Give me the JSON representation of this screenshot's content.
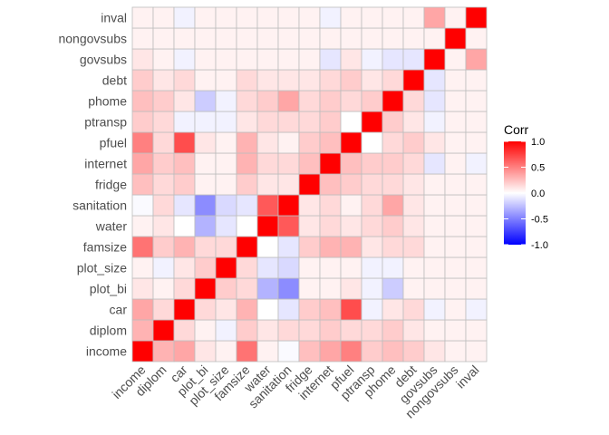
{
  "chart_data": {
    "type": "heatmap",
    "variables": [
      "income",
      "diplom",
      "car",
      "plot_bi",
      "plot_size",
      "famsize",
      "water",
      "sanitation",
      "fridge",
      "internet",
      "pfuel",
      "ptransp",
      "phome",
      "debt",
      "govsubs",
      "nongovsubs",
      "inval"
    ],
    "matrix": [
      [
        1.0,
        0.3,
        0.35,
        0.1,
        0.05,
        0.55,
        0.05,
        -0.02,
        0.25,
        0.35,
        0.5,
        0.2,
        0.25,
        0.2,
        0.1,
        0.05,
        0.05
      ],
      [
        0.3,
        1.0,
        0.15,
        0.05,
        -0.05,
        0.2,
        0.1,
        0.15,
        0.15,
        0.2,
        0.15,
        0.15,
        0.2,
        0.1,
        0.05,
        0.05,
        0.05
      ],
      [
        0.35,
        0.15,
        1.0,
        0.15,
        0.1,
        0.3,
        0.0,
        -0.1,
        0.2,
        0.25,
        0.7,
        -0.05,
        0.1,
        0.15,
        -0.05,
        0.05,
        -0.05
      ],
      [
        0.1,
        0.05,
        0.15,
        1.0,
        0.2,
        0.15,
        -0.3,
        -0.45,
        0.05,
        0.05,
        0.1,
        -0.05,
        -0.2,
        0.05,
        0.05,
        0.05,
        0.05
      ],
      [
        0.05,
        -0.05,
        0.1,
        0.2,
        1.0,
        0.15,
        -0.1,
        -0.15,
        0.05,
        0.05,
        0.05,
        -0.05,
        -0.05,
        0.05,
        0.05,
        0.05,
        0.05
      ],
      [
        0.55,
        0.2,
        0.3,
        0.15,
        0.15,
        1.0,
        0.0,
        -0.1,
        0.2,
        0.3,
        0.3,
        0.1,
        0.15,
        0.15,
        0.05,
        0.05,
        0.05
      ],
      [
        0.05,
        0.1,
        0.0,
        -0.3,
        -0.1,
        0.0,
        1.0,
        0.65,
        0.1,
        0.15,
        0.1,
        0.15,
        0.2,
        0.1,
        0.05,
        0.05,
        0.05
      ],
      [
        -0.02,
        0.15,
        -0.1,
        -0.45,
        -0.15,
        -0.1,
        0.65,
        1.0,
        0.1,
        0.15,
        0.05,
        0.15,
        0.35,
        0.1,
        0.05,
        0.05,
        0.05
      ],
      [
        0.25,
        0.15,
        0.2,
        0.05,
        0.05,
        0.2,
        0.1,
        0.1,
        1.0,
        0.25,
        0.2,
        0.15,
        0.15,
        0.1,
        0.05,
        0.05,
        0.05
      ],
      [
        0.35,
        0.2,
        0.25,
        0.05,
        0.05,
        0.3,
        0.15,
        0.15,
        0.25,
        1.0,
        0.25,
        0.2,
        0.2,
        0.15,
        -0.1,
        0.05,
        -0.05
      ],
      [
        0.5,
        0.15,
        0.7,
        0.1,
        0.05,
        0.3,
        0.1,
        0.05,
        0.2,
        0.25,
        1.0,
        0.0,
        0.15,
        0.2,
        0.1,
        0.05,
        0.05
      ],
      [
        0.2,
        0.15,
        -0.05,
        -0.05,
        -0.05,
        0.1,
        0.15,
        0.15,
        0.15,
        0.2,
        0.0,
        1.0,
        0.2,
        0.1,
        -0.05,
        0.05,
        0.05
      ],
      [
        0.25,
        0.2,
        0.1,
        -0.2,
        -0.05,
        0.15,
        0.2,
        0.35,
        0.15,
        0.2,
        0.15,
        0.2,
        1.0,
        0.15,
        -0.1,
        0.05,
        0.05
      ],
      [
        0.2,
        0.1,
        0.15,
        0.05,
        0.05,
        0.15,
        0.1,
        0.1,
        0.1,
        0.15,
        0.2,
        0.1,
        0.15,
        1.0,
        -0.1,
        0.05,
        0.05
      ],
      [
        0.1,
        0.05,
        -0.05,
        0.05,
        0.05,
        0.05,
        0.05,
        0.05,
        0.05,
        -0.1,
        0.1,
        -0.05,
        -0.1,
        -0.1,
        1.0,
        0.05,
        0.35
      ],
      [
        0.05,
        0.05,
        0.05,
        0.05,
        0.05,
        0.05,
        0.05,
        0.05,
        0.05,
        0.05,
        0.05,
        0.05,
        0.05,
        0.05,
        0.05,
        1.0,
        0.05
      ],
      [
        0.05,
        0.05,
        -0.05,
        0.05,
        0.05,
        0.05,
        0.05,
        0.05,
        0.05,
        -0.05,
        0.05,
        0.05,
        0.05,
        0.05,
        0.35,
        0.05,
        1.0
      ]
    ],
    "legend": {
      "title": "Corr",
      "ticks": [
        "1.0",
        "0.5",
        "0.0",
        "-0.5",
        "-1.0"
      ],
      "tick_values": [
        1.0,
        0.5,
        0.0,
        -0.5,
        -1.0
      ],
      "placement": "right"
    },
    "color_scale": {
      "low": "#0000FF",
      "mid": "#FFFFFF",
      "high": "#FF0000"
    },
    "value_range": [
      -1,
      1
    ],
    "cell_border_color": "#BDBDBD"
  }
}
